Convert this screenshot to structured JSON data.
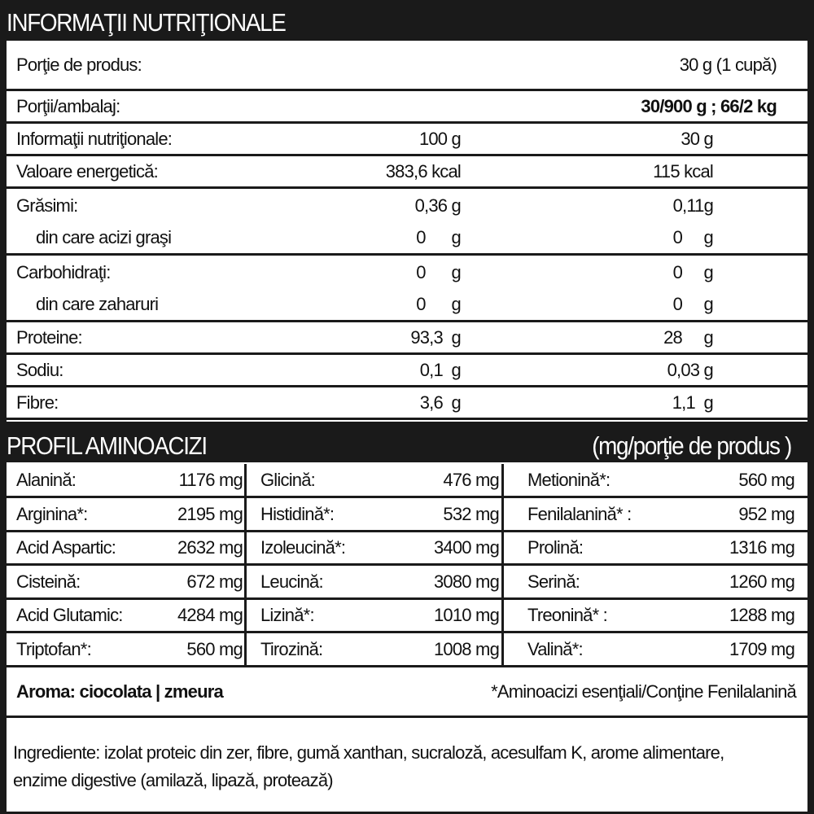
{
  "nutrition": {
    "title": "INFORMAŢII NUTRIŢIONALE",
    "serving": {
      "label": "Porţie de produs:",
      "value": "30 g (1 cupă)"
    },
    "per_pack": {
      "label": "Porţii/ambalaj:",
      "value": "30/900 g ; 66/2 kg"
    },
    "columns": {
      "label": "Informaţii nutriţionale:",
      "col1": "100 g",
      "col2": "30 g"
    },
    "rows": [
      {
        "label": "Valoare energetică:",
        "v1": "383,6 kcal",
        "v2": "115 kcal"
      },
      {
        "label": "Grăsimi:",
        "v1": "0,36 g",
        "v2": "0,11g"
      },
      {
        "label": "din care acizi graşi",
        "v1": "0      g",
        "v2": "0     g"
      },
      {
        "label": "Carbohidraţi:",
        "v1": "0      g",
        "v2": "0     g"
      },
      {
        "label": "din care zaharuri",
        "v1": "0      g",
        "v2": "0     g"
      },
      {
        "label": "Proteine:",
        "v1": "93,3  g",
        "v2": "28     g"
      },
      {
        "label": "Sodiu:",
        "v1": "0,1  g",
        "v2": "0,03 g"
      },
      {
        "label": "Fibre:",
        "v1": "3,6  g",
        "v2": "1,1  g"
      }
    ]
  },
  "amino": {
    "title": "PROFIL AMINOACIZI",
    "unit": "(mg/porţie de produs )",
    "rows": [
      [
        {
          "n": "Alanină:",
          "v": "1176 mg"
        },
        {
          "n": "Glicină:",
          "v": "476 mg"
        },
        {
          "n": "Metionină*:",
          "v": "560 mg"
        }
      ],
      [
        {
          "n": "Arginina*:",
          "v": "2195 mg"
        },
        {
          "n": "Histidină*:",
          "v": "532 mg"
        },
        {
          "n": "Fenilalanină* :",
          "v": "952 mg"
        }
      ],
      [
        {
          "n": "Acid Aspartic:",
          "v": "2632 mg"
        },
        {
          "n": "Izoleucină*:",
          "v": "3400 mg"
        },
        {
          "n": "Prolină:",
          "v": "1316 mg"
        }
      ],
      [
        {
          "n": "Cisteină:",
          "v": "672 mg"
        },
        {
          "n": "Leucină:",
          "v": "3080 mg"
        },
        {
          "n": "Serină:",
          "v": "1260 mg"
        }
      ],
      [
        {
          "n": "Acid Glutamic:",
          "v": "4284 mg"
        },
        {
          "n": "Lizină*:",
          "v": "1010 mg"
        },
        {
          "n": "Treonină* :",
          "v": "1288 mg"
        }
      ],
      [
        {
          "n": "Triptofan*:",
          "v": "560 mg"
        },
        {
          "n": "Tirozină:",
          "v": "1008 mg"
        },
        {
          "n": "Valină*:",
          "v": "1709 mg"
        }
      ]
    ]
  },
  "aroma": "Aroma: ciocolata |  zmeura",
  "footnote": "*Aminoacizi esenţiali/Conţine Fenilalanină",
  "ingredients": {
    "line1": "Ingrediente: izolat proteic din zer, fibre, gumă xanthan, sucraloză, acesulfam K, arome alimentare,",
    "line2": "enzime digestive (amilază, lipază, protează)"
  }
}
